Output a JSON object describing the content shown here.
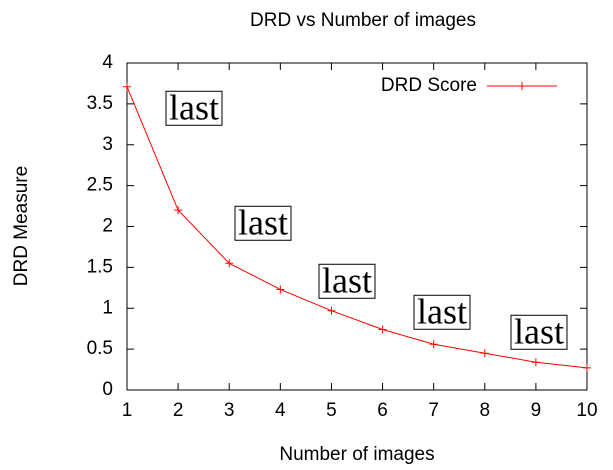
{
  "chart_data": {
    "type": "line",
    "title": "DRD vs Number of images",
    "x_label": "Number of images",
    "y_label": "DRD Measure",
    "x": [
      1,
      2,
      3,
      4,
      5,
      6,
      7,
      8,
      9,
      10
    ],
    "series": [
      {
        "name": "DRD Score",
        "color": "#ff0000",
        "values": [
          3.71,
          2.2,
          1.55,
          1.23,
          0.97,
          0.74,
          0.56,
          0.45,
          0.34,
          0.27
        ]
      }
    ],
    "xlim": [
      1,
      10
    ],
    "xticks": [
      1,
      2,
      3,
      4,
      5,
      6,
      7,
      8,
      9,
      10
    ],
    "ylim": [
      0,
      4
    ],
    "yticks": [
      0,
      0.5,
      1,
      1.5,
      2,
      2.5,
      3,
      3.5,
      4
    ],
    "legend": "top-right",
    "annotations": [
      "last",
      "last",
      "last",
      "last",
      "last"
    ]
  }
}
